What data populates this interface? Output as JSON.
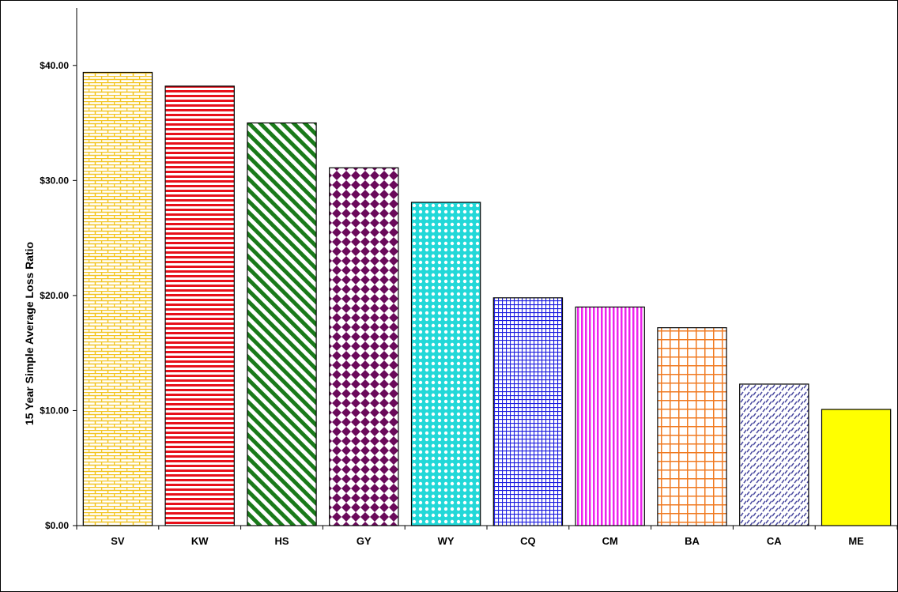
{
  "chart_data": {
    "type": "bar",
    "title": "",
    "xlabel": "",
    "ylabel": "15 Year Simple Average Loss Ratio",
    "ylim": [
      0,
      45
    ],
    "yticks": [
      0,
      10,
      20,
      30,
      40
    ],
    "ytick_labels": [
      "$0.00",
      "$10.00",
      "$20.00",
      "$30.00",
      "$40.00"
    ],
    "grid": false,
    "legend": "none",
    "categories": [
      "SV",
      "KW",
      "HS",
      "GY",
      "WY",
      "CQ",
      "CM",
      "BA",
      "CA",
      "ME"
    ],
    "values": [
      39.4,
      38.2,
      35.0,
      31.1,
      28.1,
      19.8,
      19.0,
      17.2,
      12.3,
      10.1
    ],
    "bar_styles": [
      {
        "pattern": "bricks",
        "fg": "#f2c41f",
        "bg": "#ffffff"
      },
      {
        "pattern": "horizontal-stripes",
        "fg": "#e8101a",
        "bg": "#ffffff"
      },
      {
        "pattern": "diagonal-stripes",
        "fg": "#1a7a1a",
        "bg": "#ffffff"
      },
      {
        "pattern": "diamonds",
        "fg": "#6a0a5a",
        "bg": "#ffffff"
      },
      {
        "pattern": "circles",
        "fg": "#22d8d8",
        "bg": "#ffffff"
      },
      {
        "pattern": "grid",
        "fg": "#1a1ae0",
        "bg": "#ffffff"
      },
      {
        "pattern": "vertical-stripes",
        "fg": "#ee22ee",
        "bg": "#ffffff"
      },
      {
        "pattern": "wide-grid",
        "fg": "#f07a20",
        "bg": "#ffffff"
      },
      {
        "pattern": "dashes",
        "fg": "#4a4aa0",
        "bg": "#ffffff"
      },
      {
        "pattern": "solid",
        "fg": "#ffff00",
        "bg": "#ffff00"
      }
    ]
  }
}
